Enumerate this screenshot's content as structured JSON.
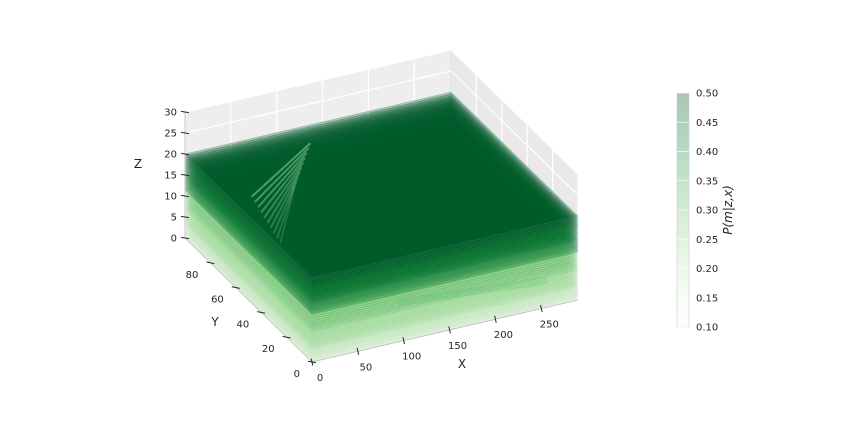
{
  "chart_data": {
    "type": "3d-stacked-contour-surfaces",
    "title": "",
    "xlabel": "X",
    "ylabel": "Y",
    "zlabel": "Z",
    "xlim": [
      0,
      290
    ],
    "ylim": [
      0,
      100
    ],
    "zlim": [
      0,
      30
    ],
    "x_ticks": [
      0,
      50,
      100,
      150,
      200,
      250
    ],
    "y_ticks": [
      0,
      20,
      40,
      60,
      80
    ],
    "z_ticks": [
      0,
      5,
      10,
      15,
      20,
      25,
      30
    ],
    "z_layers": [
      0,
      0.5,
      1,
      1.5,
      2,
      2.5,
      3,
      3.5,
      4,
      4.5,
      5,
      5.5,
      6,
      6.5,
      7,
      7.5,
      8,
      8.5,
      9,
      9.5,
      10,
      10.5,
      11,
      11.5,
      12,
      12.5,
      13,
      13.5,
      14,
      14.5,
      15,
      15.5,
      16,
      16.5,
      17,
      17.5,
      18,
      18.5,
      19,
      19.5,
      20
    ],
    "light_band_top_z": 11,
    "top_surface_z": 20,
    "colorbar": {
      "label": "P(m|z,x)",
      "ticks": [
        "0.10",
        "0.15",
        "0.20",
        "0.25",
        "0.30",
        "0.35",
        "0.40",
        "0.45",
        "0.50"
      ],
      "range": [
        0.1,
        0.5
      ],
      "colors": [
        "#f7fcf5",
        "#e5f5e0",
        "#c7e9c0",
        "#a1d99b",
        "#74c476",
        "#41ab5d",
        "#238b45",
        "#006d2c",
        "#00441b"
      ]
    },
    "grid": true,
    "legend": "colorbar-right"
  }
}
